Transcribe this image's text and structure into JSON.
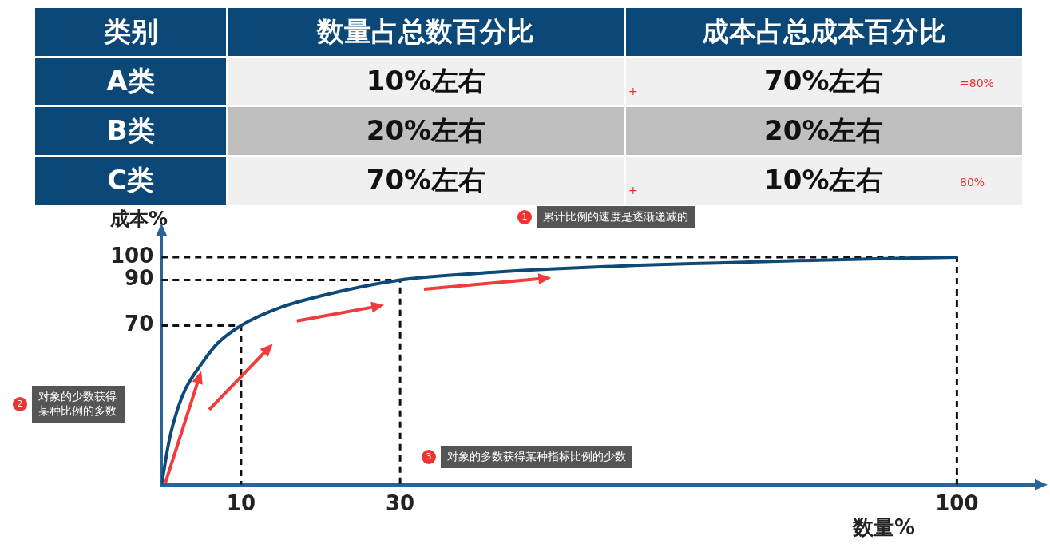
{
  "chart_data": [
    {
      "type": "other",
      "annotations": [
        "类别",
        "数量占总数百分比",
        "成本占总成本百分比",
        "A类",
        "10%左右",
        "70%左右",
        "B类",
        "20%左右",
        "20%左右",
        "C类",
        "70%左右",
        "10%左右",
        "+",
        "=80%",
        "+",
        "80%"
      ]
    },
    {
      "type": "line",
      "xlabel": "数量%",
      "ylabel": "成本%",
      "xlim": [
        0,
        110
      ],
      "ylim": [
        0,
        110
      ],
      "xticks": [
        10,
        30,
        100
      ],
      "yticks": [
        70,
        90,
        100
      ],
      "grid": false,
      "legend": false,
      "series": [
        {
          "x": [
            0,
            1,
            2,
            3,
            5,
            7,
            10,
            15,
            20,
            30,
            40,
            50,
            60,
            70,
            80,
            90,
            100
          ],
          "values": [
            0,
            20,
            33,
            42,
            53,
            62,
            70,
            78,
            83,
            90,
            93,
            95,
            96.5,
            97.5,
            98.5,
            99.3,
            100
          ],
          "color": "#0e4a78",
          "line_style": "solid"
        },
        {
          "x": [
            0,
            10,
            10
          ],
          "values": [
            70,
            70,
            0
          ],
          "color": "#111111",
          "line_style": "dashed"
        },
        {
          "x": [
            0,
            30,
            30
          ],
          "values": [
            90,
            90,
            0
          ],
          "color": "#111111",
          "line_style": "dashed"
        },
        {
          "x": [
            0,
            100,
            100
          ],
          "values": [
            100,
            100,
            0
          ],
          "color": "#111111",
          "line_style": "dashed"
        }
      ],
      "annotations": [
        "1",
        "累计比例的速度是逐渐递减的",
        "2",
        "对象的少数获得某种比例的多数",
        "3",
        "对象的多数获得某种指标比例的少数"
      ]
    }
  ]
}
